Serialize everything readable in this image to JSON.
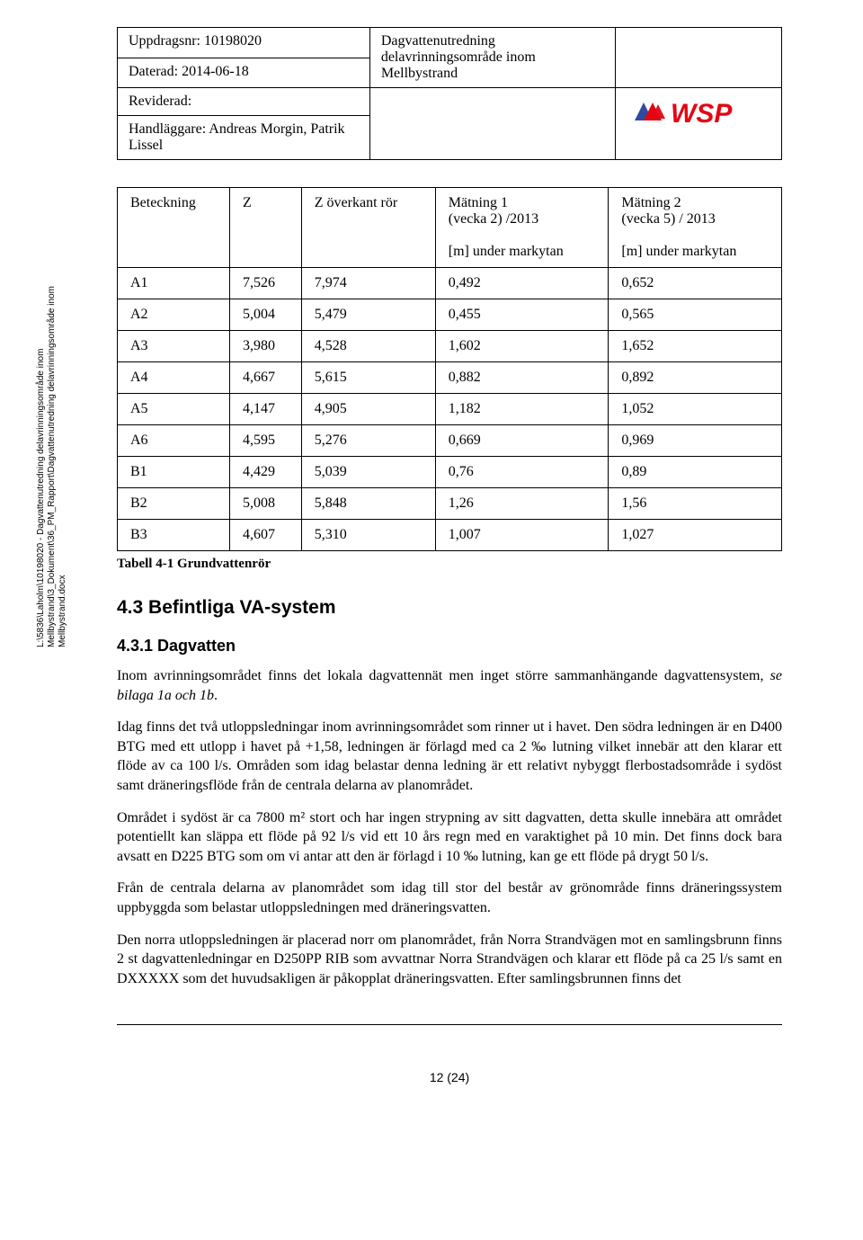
{
  "header": {
    "uppdragsnr_label": "Uppdragsnr: 10198020",
    "daterad_label": "Daterad: 2014-06-18",
    "reviderad_label": "Reviderad:",
    "handlaggare_label": "Handläggare: Andreas Morgin, Patrik Lissel",
    "title": "Dagvattenutredning delavrinningsområde inom Mellbystrand",
    "logo_text": "WSP"
  },
  "sidebar_path": "L:\\5836\\Laholm\\10198020 - Dagvattenutredning delavrinningsområde inom\nMellbystrand\\3_Dokument\\36_PM_Rapport\\Dagvattenutredning delavrinningsområde inom\nMellbystrand.docx",
  "table": {
    "headers": {
      "c0": "Beteckning",
      "c1": "Z",
      "c2": "Z överkant rör",
      "c3_line1": "Mätning 1",
      "c3_line2": "(vecka 2) /2013",
      "c3_line3": "[m] under markytan",
      "c4_line1": "Mätning 2",
      "c4_line2": "(vecka 5) / 2013",
      "c4_line3": "[m] under markytan"
    },
    "rows": [
      {
        "c0": "A1",
        "c1": "7,526",
        "c2": "7,974",
        "c3": "0,492",
        "c4": "0,652"
      },
      {
        "c0": "A2",
        "c1": "5,004",
        "c2": "5,479",
        "c3": "0,455",
        "c4": "0,565"
      },
      {
        "c0": "A3",
        "c1": "3,980",
        "c2": "4,528",
        "c3": "1,602",
        "c4": "1,652"
      },
      {
        "c0": "A4",
        "c1": "4,667",
        "c2": "5,615",
        "c3": "0,882",
        "c4": "0,892"
      },
      {
        "c0": "A5",
        "c1": "4,147",
        "c2": "4,905",
        "c3": "1,182",
        "c4": "1,052"
      },
      {
        "c0": "A6",
        "c1": "4,595",
        "c2": "5,276",
        "c3": "0,669",
        "c4": "0,969"
      },
      {
        "c0": "B1",
        "c1": "4,429",
        "c2": "5,039",
        "c3": "0,76",
        "c4": "0,89"
      },
      {
        "c0": "B2",
        "c1": "5,008",
        "c2": "5,848",
        "c3": "1,26",
        "c4": "1,56"
      },
      {
        "c0": "B3",
        "c1": "4,607",
        "c2": "5,310",
        "c3": "1,007",
        "c4": "1,027"
      }
    ],
    "caption": "Tabell 4-1 Grundvattenrör"
  },
  "headings": {
    "h43": "4.3  Befintliga VA-system",
    "h431": "4.3.1  Dagvatten"
  },
  "paragraphs": {
    "p1": "Inom avrinningsområdet finns det lokala dagvattennät men inget större sammanhängande dagvattensystem, se bilaga 1a och 1b.",
    "p2": "Idag finns det två utloppsledningar inom avrinningsområdet som rinner ut i havet. Den södra ledningen är en D400 BTG med ett utlopp i havet på +1,58, ledningen är förlagd med ca 2 ‰ lutning vilket innebär att den klarar ett flöde av ca 100 l/s. Områden som idag belastar denna ledning är ett relativt nybyggt flerbostadsområde i sydöst samt dräneringsflöde från de centrala delarna av planområdet.",
    "p3": "Området i sydöst är ca 7800 m² stort och har ingen strypning av sitt dagvatten, detta skulle innebära att området potentiellt kan släppa ett flöde på 92 l/s vid ett 10 års regn med en varaktighet på 10 min. Det finns dock bara avsatt en D225 BTG som om vi antar att den är förlagd i 10 ‰ lutning, kan ge ett flöde på drygt 50 l/s.",
    "p4": "Från de centrala delarna av planområdet som idag till stor del består av grönområde finns dräneringssystem uppbyggda som belastar utloppsledningen med dräneringsvatten.",
    "p5": "Den norra utloppsledningen är placerad norr om planområdet, från Norra Strandvägen mot en samlingsbrunn finns 2 st dagvattenledningar en D250PP RIB som avvattnar Norra Strandvägen och klarar ett flöde på ca 25 l/s samt en DXXXXX som det huvudsakligen är påkopplat dräneringsvatten. Efter samlingsbrunnen finns det"
  },
  "page_number": "12 (24)",
  "colors": {
    "logo_red": "#e30613",
    "logo_blue": "#2f4b9d",
    "text": "#000000"
  }
}
